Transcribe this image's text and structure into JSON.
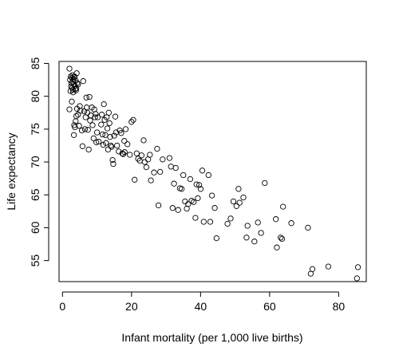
{
  "chart_data": {
    "type": "scatter",
    "xlabel": "Infant mortality (per 1,000 live births)",
    "ylabel": "Life expectancy",
    "xlim": [
      -1,
      88
    ],
    "ylim": [
      51.8,
      85.3
    ],
    "xticks": [
      0,
      20,
      40,
      60,
      80
    ],
    "yticks": [
      55,
      60,
      65,
      70,
      75,
      80,
      85
    ],
    "grid": false,
    "point_style": "open-circle",
    "series": [
      {
        "points": [
          [
            2.0,
            84.2
          ],
          [
            2.2,
            82.5
          ],
          [
            2.3,
            80.8
          ],
          [
            2.4,
            83.0
          ],
          [
            2.5,
            81.5
          ],
          [
            2.6,
            82.0
          ],
          [
            2.7,
            82.8
          ],
          [
            2.8,
            81.3
          ],
          [
            2.9,
            83.2
          ],
          [
            3.0,
            82.2
          ],
          [
            3.0,
            81.0
          ],
          [
            3.1,
            80.6
          ],
          [
            3.2,
            82.6
          ],
          [
            3.3,
            81.8
          ],
          [
            3.4,
            82.9
          ],
          [
            3.5,
            83.0
          ],
          [
            3.6,
            81.6
          ],
          [
            3.7,
            81.1
          ],
          [
            3.8,
            82.4
          ],
          [
            3.9,
            80.9
          ],
          [
            4.0,
            81.2
          ],
          [
            4.1,
            83.5
          ],
          [
            4.3,
            82.0
          ],
          [
            4.5,
            81.8
          ],
          [
            2.0,
            78.0
          ],
          [
            2.7,
            79.2
          ],
          [
            3.3,
            74.1
          ],
          [
            3.4,
            75.6
          ],
          [
            3.6,
            75.3
          ],
          [
            3.8,
            76.2
          ],
          [
            4.0,
            77.0
          ],
          [
            4.2,
            78.1
          ],
          [
            4.5,
            77.2
          ],
          [
            4.8,
            75.5
          ],
          [
            5.0,
            78.5
          ],
          [
            5.2,
            77.8
          ],
          [
            5.6,
            74.8
          ],
          [
            5.8,
            72.4
          ],
          [
            6.0,
            82.3
          ],
          [
            6.3,
            77.7
          ],
          [
            6.5,
            75.0
          ],
          [
            6.7,
            76.8
          ],
          [
            6.9,
            79.8
          ],
          [
            7.0,
            78.3
          ],
          [
            7.2,
            77.5
          ],
          [
            7.4,
            74.9
          ],
          [
            7.6,
            71.9
          ],
          [
            7.8,
            79.9
          ],
          [
            8.0,
            76.3
          ],
          [
            8.2,
            77.1
          ],
          [
            8.5,
            78.3
          ],
          [
            8.7,
            75.6
          ],
          [
            9.0,
            73.6
          ],
          [
            9.2,
            78.0
          ],
          [
            9.4,
            76.8
          ],
          [
            9.6,
            77.3
          ],
          [
            9.8,
            73.0
          ],
          [
            10.0,
            74.5
          ],
          [
            10.2,
            76.8
          ],
          [
            10.5,
            73.1
          ],
          [
            11.2,
            75.7
          ],
          [
            11.4,
            77.2
          ],
          [
            11.6,
            74.2
          ],
          [
            11.8,
            72.6
          ],
          [
            12.0,
            78.8
          ],
          [
            12.2,
            76.4
          ],
          [
            12.4,
            74.1
          ],
          [
            12.6,
            72.9
          ],
          [
            12.8,
            76.8
          ],
          [
            13.0,
            75.1
          ],
          [
            13.2,
            71.9
          ],
          [
            13.4,
            77.5
          ],
          [
            13.6,
            75.9
          ],
          [
            13.8,
            73.8
          ],
          [
            14.0,
            72.5
          ],
          [
            14.2,
            72.3
          ],
          [
            14.5,
            70.3
          ],
          [
            14.7,
            69.7
          ],
          [
            15.0,
            74.0
          ],
          [
            15.3,
            76.9
          ],
          [
            15.5,
            74.5
          ],
          [
            15.8,
            72.5
          ],
          [
            16.3,
            71.6
          ],
          [
            16.6,
            74.8
          ],
          [
            17.0,
            74.4
          ],
          [
            17.3,
            71.3
          ],
          [
            17.6,
            71.2
          ],
          [
            17.9,
            73.2
          ],
          [
            18.0,
            71.5
          ],
          [
            18.3,
            75.0
          ],
          [
            18.8,
            72.7
          ],
          [
            19.5,
            71.1
          ],
          [
            20.0,
            76.1
          ],
          [
            20.5,
            76.4
          ],
          [
            20.9,
            67.3
          ],
          [
            21.5,
            71.3
          ],
          [
            21.9,
            70.5
          ],
          [
            22.4,
            70.2
          ],
          [
            22.9,
            71.0
          ],
          [
            23.5,
            73.3
          ],
          [
            23.8,
            70.0
          ],
          [
            24.3,
            69.2
          ],
          [
            24.8,
            70.4
          ],
          [
            25.3,
            71.1
          ],
          [
            25.6,
            67.2
          ],
          [
            26.5,
            68.4
          ],
          [
            27.4,
            72.0
          ],
          [
            27.8,
            63.4
          ],
          [
            28.3,
            68.5
          ],
          [
            29.0,
            70.4
          ],
          [
            31.0,
            70.6
          ],
          [
            31.4,
            69.3
          ],
          [
            31.9,
            63.0
          ],
          [
            32.3,
            66.7
          ],
          [
            32.8,
            69.1
          ],
          [
            33.5,
            62.7
          ],
          [
            34.0,
            66.0
          ],
          [
            34.5,
            65.9
          ],
          [
            35.0,
            68.0
          ],
          [
            35.5,
            64.0
          ],
          [
            36.0,
            62.9
          ],
          [
            36.4,
            63.6
          ],
          [
            37.0,
            67.4
          ],
          [
            37.4,
            64.1
          ],
          [
            38.0,
            63.9
          ],
          [
            38.5,
            61.5
          ],
          [
            38.8,
            66.6
          ],
          [
            39.2,
            64.5
          ],
          [
            39.6,
            66.5
          ],
          [
            40.0,
            65.9
          ],
          [
            40.5,
            68.7
          ],
          [
            40.9,
            60.9
          ],
          [
            42.3,
            68.0
          ],
          [
            42.8,
            60.9
          ],
          [
            43.3,
            64.9
          ],
          [
            44.1,
            63.0
          ],
          [
            44.6,
            58.4
          ],
          [
            47.8,
            60.6
          ],
          [
            48.7,
            61.4
          ],
          [
            49.5,
            64.0
          ],
          [
            50.4,
            63.3
          ],
          [
            51.0,
            65.9
          ],
          [
            51.3,
            63.8
          ],
          [
            52.4,
            64.6
          ],
          [
            53.6,
            60.3
          ],
          [
            53.3,
            58.5
          ],
          [
            55.6,
            57.9
          ],
          [
            56.6,
            60.8
          ],
          [
            57.5,
            59.2
          ],
          [
            58.6,
            66.8
          ],
          [
            61.8,
            61.3
          ],
          [
            62.1,
            57.0
          ],
          [
            63.2,
            58.5
          ],
          [
            63.6,
            58.3
          ],
          [
            63.9,
            63.2
          ],
          [
            66.3,
            60.7
          ],
          [
            71.1,
            60.0
          ],
          [
            71.9,
            53.0
          ],
          [
            72.4,
            53.7
          ],
          [
            77.0,
            54.1
          ],
          [
            85.3,
            52.3
          ],
          [
            85.6,
            54.0
          ]
        ]
      }
    ]
  }
}
